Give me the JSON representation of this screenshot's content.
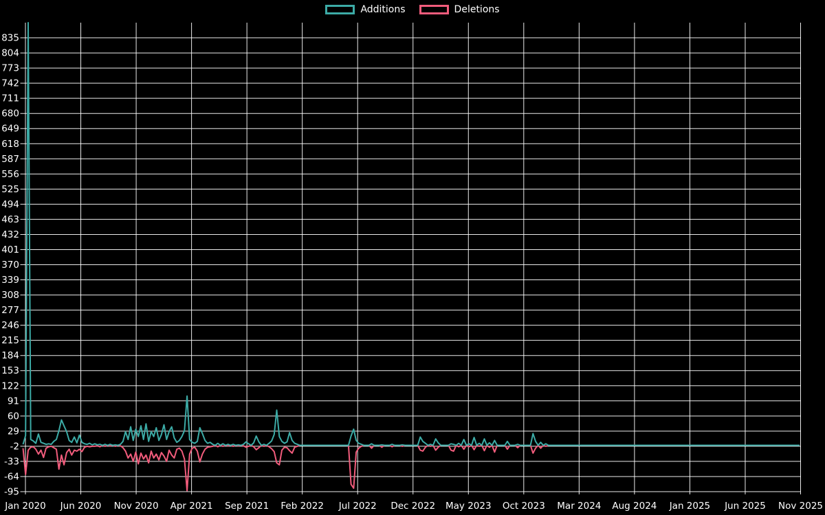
{
  "legend": {
    "additions_label": "Additions",
    "deletions_label": "Deletions"
  },
  "chart_data": {
    "type": "line",
    "title": "",
    "xlabel": "",
    "ylabel": "",
    "legend_position": "top-center",
    "grid": true,
    "background_color": "#000000",
    "grid_color": "#ffffff",
    "text_color": "#ffffff",
    "series": [
      {
        "name": "Additions",
        "color": "#3caba6",
        "sign": "positive"
      },
      {
        "name": "Deletions",
        "color": "#f25c7c",
        "sign": "negative"
      }
    ],
    "y_ticks": [
      -95,
      -64,
      -33,
      -2,
      29,
      60,
      91,
      122,
      153,
      184,
      215,
      246,
      277,
      308,
      339,
      370,
      401,
      432,
      463,
      494,
      525,
      556,
      587,
      618,
      649,
      680,
      711,
      742,
      773,
      804,
      835
    ],
    "y_range": [
      -95,
      866
    ],
    "x_ticks": [
      "Jan 2020",
      "Jun 2020",
      "Nov 2020",
      "Apr 2021",
      "Sep 2021",
      "Feb 2022",
      "Jul 2022",
      "Dec 2022",
      "May 2023",
      "Oct 2023",
      "Mar 2024",
      "Aug 2024",
      "Jan 2025",
      "Jun 2025",
      "Nov 2025"
    ],
    "weeks_total": 304,
    "points_format": "[week_index, additions, deletions] — weekly data starting Jan 2020; weeks not listed are [0, 0]",
    "points": [
      [
        0,
        2,
        -6
      ],
      [
        1,
        20,
        -60
      ],
      [
        2,
        866,
        -10
      ],
      [
        3,
        12,
        -4
      ],
      [
        4,
        9,
        -3
      ],
      [
        5,
        4,
        -8
      ],
      [
        6,
        23,
        -18
      ],
      [
        7,
        6,
        -10
      ],
      [
        8,
        4,
        -25
      ],
      [
        9,
        2,
        -6
      ],
      [
        10,
        3,
        -3
      ],
      [
        11,
        2,
        -2
      ],
      [
        12,
        8,
        -5
      ],
      [
        13,
        12,
        -8
      ],
      [
        14,
        30,
        -49
      ],
      [
        15,
        52,
        -20
      ],
      [
        16,
        40,
        -40
      ],
      [
        17,
        28,
        -15
      ],
      [
        18,
        10,
        -8
      ],
      [
        19,
        6,
        -20
      ],
      [
        20,
        17,
        -10
      ],
      [
        21,
        5,
        -12
      ],
      [
        22,
        21,
        -8
      ],
      [
        23,
        6,
        -13
      ],
      [
        24,
        3,
        -4
      ],
      [
        25,
        2,
        -2
      ],
      [
        26,
        4,
        -3
      ],
      [
        27,
        1,
        -2
      ],
      [
        28,
        3,
        -2
      ],
      [
        29,
        1,
        -1
      ],
      [
        30,
        2,
        -3
      ],
      [
        32,
        2,
        -2
      ],
      [
        34,
        2,
        -1
      ],
      [
        36,
        1,
        -2
      ],
      [
        38,
        2,
        -1
      ],
      [
        39,
        8,
        -5
      ],
      [
        40,
        28,
        -12
      ],
      [
        41,
        12,
        -26
      ],
      [
        42,
        38,
        -18
      ],
      [
        43,
        10,
        -33
      ],
      [
        44,
        33,
        -14
      ],
      [
        45,
        18,
        -38
      ],
      [
        46,
        40,
        -16
      ],
      [
        47,
        12,
        -28
      ],
      [
        48,
        44,
        -20
      ],
      [
        49,
        8,
        -36
      ],
      [
        50,
        28,
        -12
      ],
      [
        51,
        18,
        -26
      ],
      [
        52,
        36,
        -18
      ],
      [
        53,
        10,
        -30
      ],
      [
        54,
        22,
        -15
      ],
      [
        55,
        42,
        -22
      ],
      [
        56,
        12,
        -33
      ],
      [
        57,
        28,
        -10
      ],
      [
        58,
        38,
        -20
      ],
      [
        59,
        15,
        -26
      ],
      [
        60,
        6,
        -8
      ],
      [
        61,
        10,
        -6
      ],
      [
        62,
        18,
        -12
      ],
      [
        63,
        30,
        -28
      ],
      [
        64,
        101,
        -93
      ],
      [
        65,
        12,
        -18
      ],
      [
        66,
        6,
        -6
      ],
      [
        67,
        4,
        -4
      ],
      [
        68,
        8,
        -12
      ],
      [
        69,
        36,
        -34
      ],
      [
        70,
        24,
        -18
      ],
      [
        71,
        10,
        -8
      ],
      [
        72,
        4,
        -4
      ],
      [
        73,
        6,
        -3
      ],
      [
        74,
        2,
        -2
      ],
      [
        76,
        4,
        -3
      ],
      [
        78,
        3,
        -2
      ],
      [
        80,
        2,
        -1
      ],
      [
        82,
        2,
        -2
      ],
      [
        84,
        1,
        -1
      ],
      [
        86,
        2,
        -1
      ],
      [
        87,
        7,
        -4
      ],
      [
        88,
        3,
        -2
      ],
      [
        90,
        5,
        -3
      ],
      [
        91,
        19,
        -9
      ],
      [
        92,
        7,
        -5
      ],
      [
        94,
        2,
        -2
      ],
      [
        96,
        4,
        -3
      ],
      [
        97,
        9,
        -7
      ],
      [
        98,
        22,
        -13
      ],
      [
        99,
        72,
        -36
      ],
      [
        100,
        18,
        -40
      ],
      [
        101,
        8,
        -10
      ],
      [
        102,
        4,
        -4
      ],
      [
        103,
        7,
        -5
      ],
      [
        104,
        26,
        -11
      ],
      [
        105,
        10,
        -16
      ],
      [
        106,
        4,
        -4
      ],
      [
        107,
        2,
        -2
      ],
      [
        128,
        19,
        -80
      ],
      [
        129,
        33,
        -88
      ],
      [
        130,
        10,
        -14
      ],
      [
        131,
        4,
        -6
      ],
      [
        132,
        2,
        -2
      ],
      [
        136,
        3,
        -6
      ],
      [
        140,
        1,
        -4
      ],
      [
        144,
        2,
        -3
      ],
      [
        148,
        1,
        -2
      ],
      [
        155,
        17,
        -10
      ],
      [
        156,
        8,
        -12
      ],
      [
        157,
        4,
        -4
      ],
      [
        159,
        2,
        -2
      ],
      [
        161,
        13,
        -10
      ],
      [
        162,
        5,
        -4
      ],
      [
        167,
        3,
        -10
      ],
      [
        168,
        2,
        -12
      ],
      [
        170,
        4,
        -3
      ],
      [
        172,
        12,
        -8
      ],
      [
        174,
        3,
        -3
      ],
      [
        176,
        16,
        -9
      ],
      [
        178,
        4,
        -2
      ],
      [
        180,
        13,
        -11
      ],
      [
        182,
        5,
        -4
      ],
      [
        184,
        10,
        -14
      ],
      [
        189,
        8,
        -8
      ],
      [
        193,
        2,
        -5
      ],
      [
        199,
        24,
        -16
      ],
      [
        200,
        8,
        -6
      ],
      [
        202,
        6,
        -6
      ],
      [
        204,
        3,
        -2
      ]
    ]
  }
}
